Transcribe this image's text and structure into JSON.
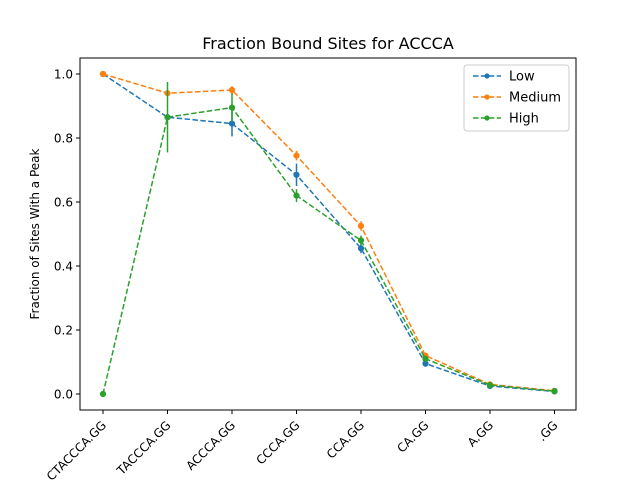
{
  "chart_data": {
    "type": "line",
    "title": "Fraction Bound Sites for ACCCA",
    "xlabel": "",
    "ylabel": "Fraction of Sites With a Peak",
    "categories": [
      "CTACCCA.GG",
      "TACCCA.GG",
      "ACCCA.GG",
      "CCCA.GG",
      "CCA.GG",
      "CA.GG",
      "A.GG",
      ".GG"
    ],
    "ylim": [
      -0.05,
      1.05
    ],
    "yticks": [
      0.0,
      0.2,
      0.4,
      0.6,
      0.8,
      1.0
    ],
    "ytick_labels": [
      "0.0",
      "0.2",
      "0.4",
      "0.6",
      "0.8",
      "1.0"
    ],
    "grid": false,
    "legend_position": "top-right",
    "series": [
      {
        "name": "Low",
        "color": "#1f77b4",
        "linestyle": "dashed",
        "marker": "circle",
        "values": [
          1.0,
          0.865,
          0.845,
          0.685,
          0.455,
          0.095,
          0.025,
          0.008
        ],
        "errors": [
          0.0,
          0.0,
          0.04,
          0.035,
          0.015,
          0.01,
          0.004,
          0.002
        ]
      },
      {
        "name": "Medium",
        "color": "#ff7f0e",
        "linestyle": "dashed",
        "marker": "circle",
        "values": [
          1.0,
          0.94,
          0.95,
          0.745,
          0.525,
          0.12,
          0.03,
          0.01
        ],
        "errors": [
          0.0,
          0.0,
          0.012,
          0.015,
          0.015,
          0.008,
          0.003,
          0.002
        ]
      },
      {
        "name": "High",
        "color": "#2ca02c",
        "linestyle": "dashed",
        "marker": "circle",
        "values": [
          0.0,
          0.865,
          0.895,
          0.62,
          0.48,
          0.11,
          0.028,
          0.009
        ],
        "errors": [
          0.0,
          0.11,
          0.045,
          0.02,
          0.015,
          0.008,
          0.003,
          0.002
        ]
      }
    ]
  }
}
